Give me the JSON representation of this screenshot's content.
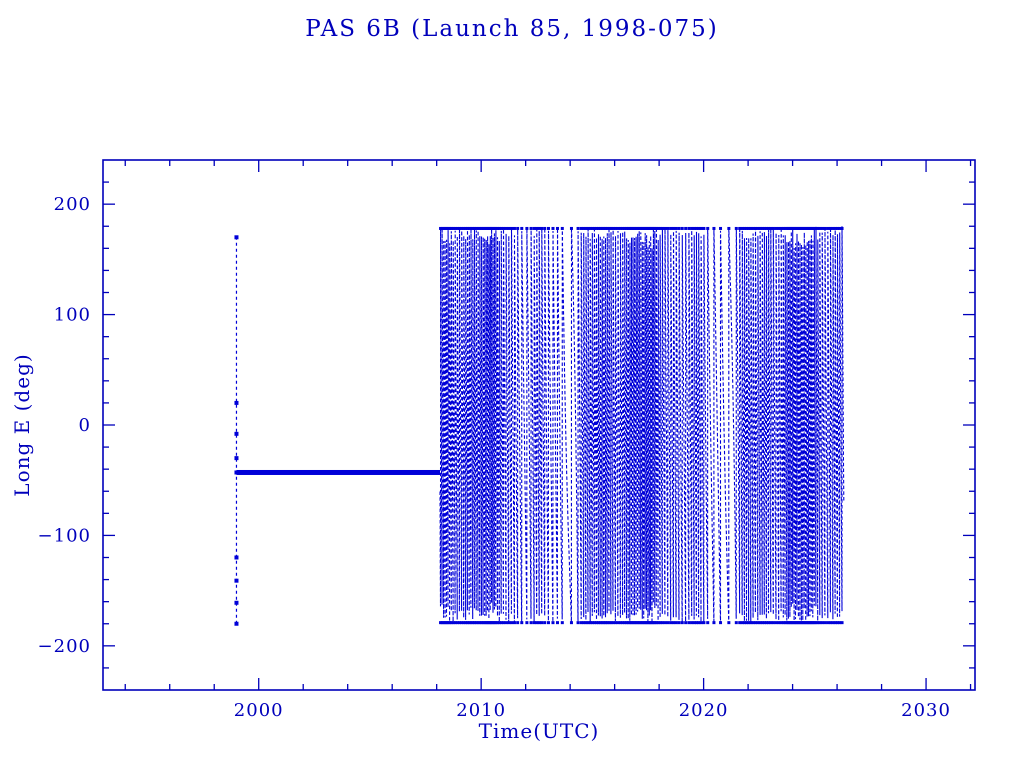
{
  "chart_data": {
    "type": "line",
    "title": "PAS 6B (Launch 85, 1998-075)",
    "xlabel": "Time(UTC)",
    "ylabel": "Long E (deg)",
    "xlim": [
      1993,
      2032.2
    ],
    "ylim": [
      -240,
      240
    ],
    "xticks": [
      2000,
      2010,
      2020,
      2030
    ],
    "x_minor_step": 2,
    "yticks": [
      -200,
      -100,
      0,
      100,
      200
    ],
    "y_minor_step": 20,
    "grid": false,
    "legend": "none",
    "line_color": "#0000d8",
    "frame_color": "#0000bb",
    "text_color": "#0000bb",
    "segments": [
      {
        "name": "launch-drift-spike",
        "type": "vline",
        "x": 1999.0,
        "y_min": -180,
        "y_max": 170,
        "markers_y": [
          170,
          20,
          -8,
          -30,
          -43,
          -120,
          -141,
          -161,
          -180
        ]
      },
      {
        "name": "stationkeeping-slot",
        "type": "hline",
        "y": -43,
        "x_start": 1999.0,
        "x_end": 2008.15
      },
      {
        "name": "post-disposal-libration",
        "type": "wrapped_drift",
        "x_start": 2008.15,
        "x_end": 2026.3,
        "start_lon": -43,
        "base_rate_deg_per_year": 3300,
        "y_min": -180,
        "y_max": 180
      }
    ]
  }
}
